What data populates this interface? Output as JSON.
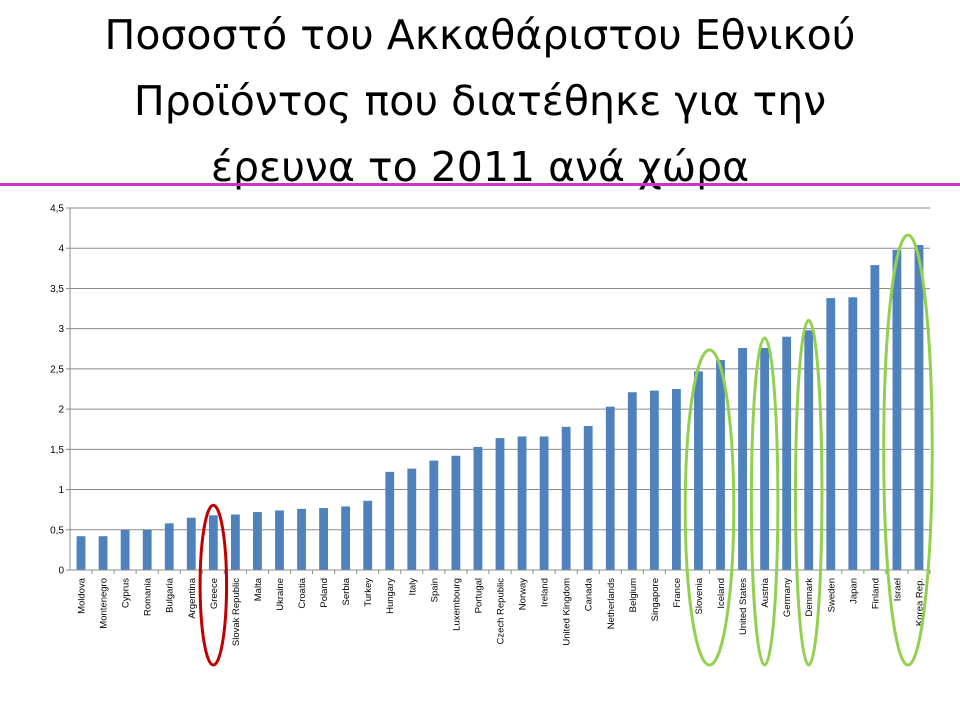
{
  "slide": {
    "title_lines": [
      "Ποσοστό του Ακκαθάριστου Εθνικού",
      "Προϊόντος που διατέθηκε για την",
      "έρευνα το 2011 ανά χώρα"
    ],
    "accent_color": "#cc33cc"
  },
  "chart_data": {
    "type": "bar",
    "categories": [
      "Moldova",
      "Montenegro",
      "Cyprus",
      "Romania",
      "Bulgaria",
      "Argentina",
      "Greece",
      "Slovak Republic",
      "Malta",
      "Ukraine",
      "Croatia",
      "Poland",
      "Serbia",
      "Turkey",
      "Hungary",
      "Italy",
      "Spain",
      "Luxembourg",
      "Portugal",
      "Czech Republic",
      "Norway",
      "Ireland",
      "United Kingdom",
      "Canada",
      "Netherlands",
      "Belgium",
      "Singapore",
      "France",
      "Slovenia",
      "Iceland",
      "United States",
      "Austria",
      "Germany",
      "Denmark",
      "Sweden",
      "Japan",
      "Finland",
      "Israel",
      "Korea Rep."
    ],
    "values": [
      0.42,
      0.42,
      0.5,
      0.5,
      0.58,
      0.65,
      0.68,
      0.69,
      0.72,
      0.74,
      0.76,
      0.77,
      0.79,
      0.86,
      1.22,
      1.26,
      1.36,
      1.42,
      1.53,
      1.64,
      1.66,
      1.66,
      1.78,
      1.79,
      2.03,
      2.21,
      2.23,
      2.25,
      2.47,
      2.61,
      2.76,
      2.76,
      2.9,
      2.98,
      3.38,
      3.39,
      3.79,
      3.98,
      4.04
    ],
    "ylim": [
      0,
      4.5
    ],
    "yticks": [
      "0",
      "0,5",
      "1",
      "1,5",
      "2",
      "2,5",
      "3",
      "3,5",
      "4",
      "4,5"
    ],
    "ytick_values": [
      0,
      0.5,
      1,
      1.5,
      2,
      2.5,
      3,
      3.5,
      4,
      4.5
    ],
    "xlabel": "",
    "ylabel": "",
    "grid": true,
    "legend": "none",
    "bar_color": "#4f81bd",
    "highlights": [
      {
        "categories": [
          "Greece"
        ],
        "color": "#c00000"
      },
      {
        "categories": [
          "Slovenia",
          "Iceland"
        ],
        "color": "#92d050"
      },
      {
        "categories": [
          "Austria"
        ],
        "color": "#92d050"
      },
      {
        "categories": [
          "Denmark"
        ],
        "color": "#92d050"
      },
      {
        "categories": [
          "Israel",
          "Korea Rep."
        ],
        "color": "#92d050"
      }
    ]
  }
}
